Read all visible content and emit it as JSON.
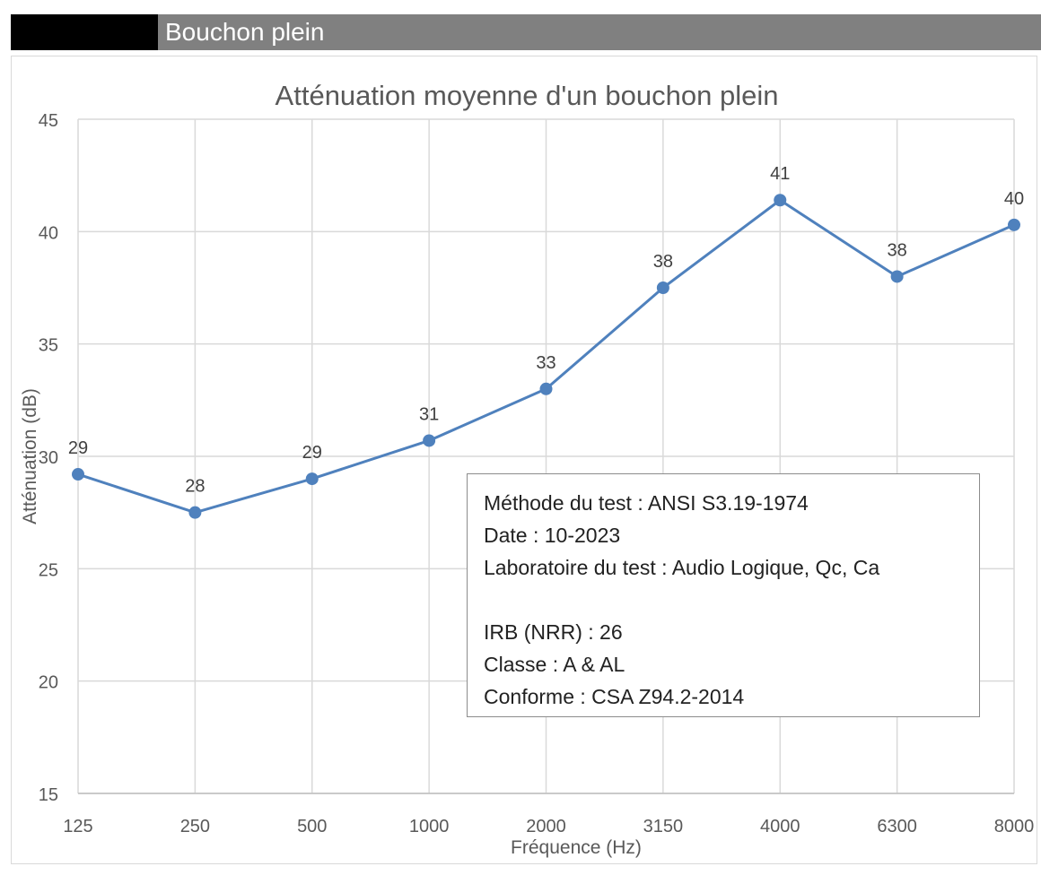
{
  "header": {
    "title": "Bouchon plein"
  },
  "chart_data": {
    "type": "line",
    "title": "Atténuation moyenne d'un bouchon plein",
    "xlabel": "Fréquence (Hz)",
    "ylabel": "Atténuation (dB)",
    "categories": [
      "125",
      "250",
      "500",
      "1000",
      "2000",
      "3150",
      "4000",
      "6300",
      "8000"
    ],
    "values": [
      29.2,
      27.5,
      29.0,
      30.7,
      33.0,
      37.5,
      41.4,
      38.0,
      40.3
    ],
    "data_labels": [
      "29",
      "28",
      "29",
      "31",
      "33",
      "38",
      "41",
      "38",
      "40"
    ],
    "ylim": [
      15,
      45
    ],
    "yticks": [
      15,
      20,
      25,
      30,
      35,
      40,
      45
    ],
    "grid": true,
    "legend": "none",
    "line_color": "#4f81bd"
  },
  "info_box": {
    "line1": "Méthode du test : ANSI S3.19-1974",
    "line2": "Date : 10-2023",
    "line3": "Laboratoire du test : Audio Logique, Qc, Ca",
    "line4": "IRB (NRR) : 26",
    "line5": "Classe : A & AL",
    "line6": "Conforme : CSA Z94.2-2014"
  }
}
